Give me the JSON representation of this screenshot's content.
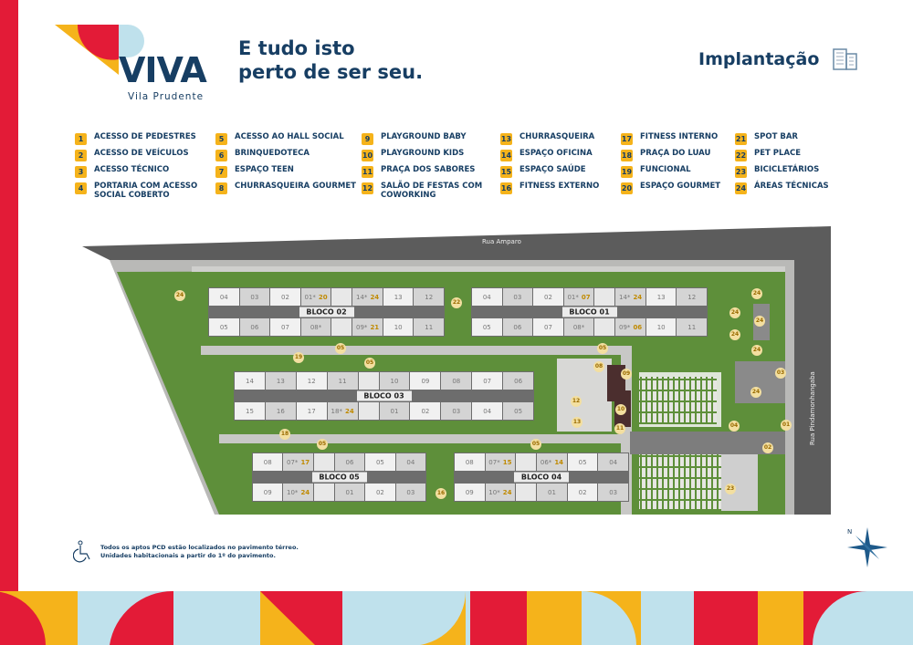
{
  "brand": {
    "name": "VIVA",
    "subtitle": "Vila Prudente"
  },
  "tagline": [
    "E tudo isto",
    "perto de ser seu."
  ],
  "section_title": "Implantação",
  "colors": {
    "navy": "#173e63",
    "red": "#e31b37",
    "yellow": "#f5b31b",
    "light_blue": "#bfe1ec",
    "grass": "#5e8f3a",
    "road": "#5c5c5c"
  },
  "legend": [
    {
      "n": "1",
      "label": "ACESSO DE PEDESTRES"
    },
    {
      "n": "2",
      "label": "ACESSO DE VEÍCULOS"
    },
    {
      "n": "3",
      "label": "ACESSO TÉCNICO"
    },
    {
      "n": "4",
      "label": "PORTARIA COM ACESSO SOCIAL COBERTO"
    },
    {
      "n": "5",
      "label": "ACESSO AO HALL SOCIAL"
    },
    {
      "n": "6",
      "label": "BRINQUEDOTECA"
    },
    {
      "n": "7",
      "label": "ESPAÇO TEEN"
    },
    {
      "n": "8",
      "label": "CHURRASQUEIRA GOURMET"
    },
    {
      "n": "9",
      "label": "PLAYGROUND BABY"
    },
    {
      "n": "10",
      "label": "PLAYGROUND KIDS"
    },
    {
      "n": "11",
      "label": "PRAÇA DOS SABORES"
    },
    {
      "n": "12",
      "label": "SALÃO DE FESTAS COM COWORKING"
    },
    {
      "n": "13",
      "label": "CHURRASQUEIRA"
    },
    {
      "n": "14",
      "label": "ESPAÇO OFICINA"
    },
    {
      "n": "15",
      "label": "ESPAÇO SAÚDE"
    },
    {
      "n": "16",
      "label": "FITNESS EXTERNO"
    },
    {
      "n": "17",
      "label": "FITNESS INTERNO"
    },
    {
      "n": "18",
      "label": "PRAÇA DO LUAU"
    },
    {
      "n": "19",
      "label": "FUNCIONAL"
    },
    {
      "n": "20",
      "label": "ESPAÇO GOURMET"
    },
    {
      "n": "21",
      "label": "SPOT BAR"
    },
    {
      "n": "22",
      "label": "PET PLACE"
    },
    {
      "n": "23",
      "label": "BICICLETÁRIOS"
    },
    {
      "n": "24",
      "label": "ÁREAS TÉCNICAS"
    }
  ],
  "streets": {
    "top": "Rua Amparo",
    "right": "Rua Pindamonhangaba"
  },
  "blocks": [
    {
      "name": "BLOCO 02",
      "top": [
        [
          "04"
        ],
        [
          "03"
        ],
        [
          "02"
        ],
        [
          "01*",
          "20"
        ],
        null,
        [
          "14*",
          "24"
        ],
        [
          "13"
        ],
        [
          "12"
        ]
      ],
      "bottom": [
        [
          "05"
        ],
        [
          "06"
        ],
        [
          "07"
        ],
        [
          "08*"
        ],
        null,
        [
          "09*",
          "21"
        ],
        [
          "10"
        ],
        [
          "11"
        ]
      ]
    },
    {
      "name": "BLOCO 01",
      "top": [
        [
          "04"
        ],
        [
          "03"
        ],
        [
          "02"
        ],
        [
          "01*",
          "07"
        ],
        null,
        [
          "14*",
          "24"
        ],
        [
          "13"
        ],
        [
          "12"
        ]
      ],
      "bottom": [
        [
          "05"
        ],
        [
          "06"
        ],
        [
          "07"
        ],
        [
          "08*"
        ],
        null,
        [
          "09*",
          "06"
        ],
        [
          "10"
        ],
        [
          "11"
        ]
      ]
    },
    {
      "name": "BLOCO 03",
      "top": [
        [
          "14"
        ],
        [
          "13"
        ],
        [
          "12"
        ],
        [
          "11"
        ],
        null,
        [
          "10"
        ],
        [
          "09"
        ],
        [
          "08"
        ],
        [
          "07"
        ],
        [
          "06"
        ]
      ],
      "bottom": [
        [
          "15"
        ],
        [
          "16"
        ],
        [
          "17"
        ],
        [
          "18*",
          "24"
        ],
        null,
        [
          "01"
        ],
        [
          "02"
        ],
        [
          "03"
        ],
        [
          "04"
        ],
        [
          "05"
        ]
      ]
    },
    {
      "name": "BLOCO 05",
      "top": [
        [
          "08"
        ],
        [
          "07*",
          "17"
        ],
        null,
        [
          "06"
        ],
        [
          "05"
        ],
        [
          "04"
        ]
      ],
      "bottom": [
        [
          "09"
        ],
        [
          "10*",
          "24"
        ],
        null,
        [
          "01"
        ],
        [
          "02"
        ],
        [
          "03"
        ]
      ]
    },
    {
      "name": "BLOCO 04",
      "top": [
        [
          "08"
        ],
        [
          "07*",
          "15"
        ],
        null,
        [
          "06*",
          "14"
        ],
        [
          "05"
        ],
        [
          "04"
        ]
      ],
      "bottom": [
        [
          "09"
        ],
        [
          "10*",
          "24"
        ],
        null,
        [
          "01"
        ],
        [
          "02"
        ],
        [
          "03"
        ]
      ]
    }
  ],
  "map_markers": [
    "24",
    "22",
    "05",
    "05",
    "19",
    "05",
    "18",
    "05",
    "05",
    "16",
    "12",
    "13",
    "09",
    "10",
    "11",
    "08",
    "24",
    "24",
    "24",
    "24",
    "24",
    "24",
    "03",
    "04",
    "01",
    "02",
    "23"
  ],
  "note": [
    "Todos os aptos PCD estão localizados no pavimento térreo.",
    "Unidades habitacionais a partir do 1º do pavimento."
  ],
  "compass": "N"
}
